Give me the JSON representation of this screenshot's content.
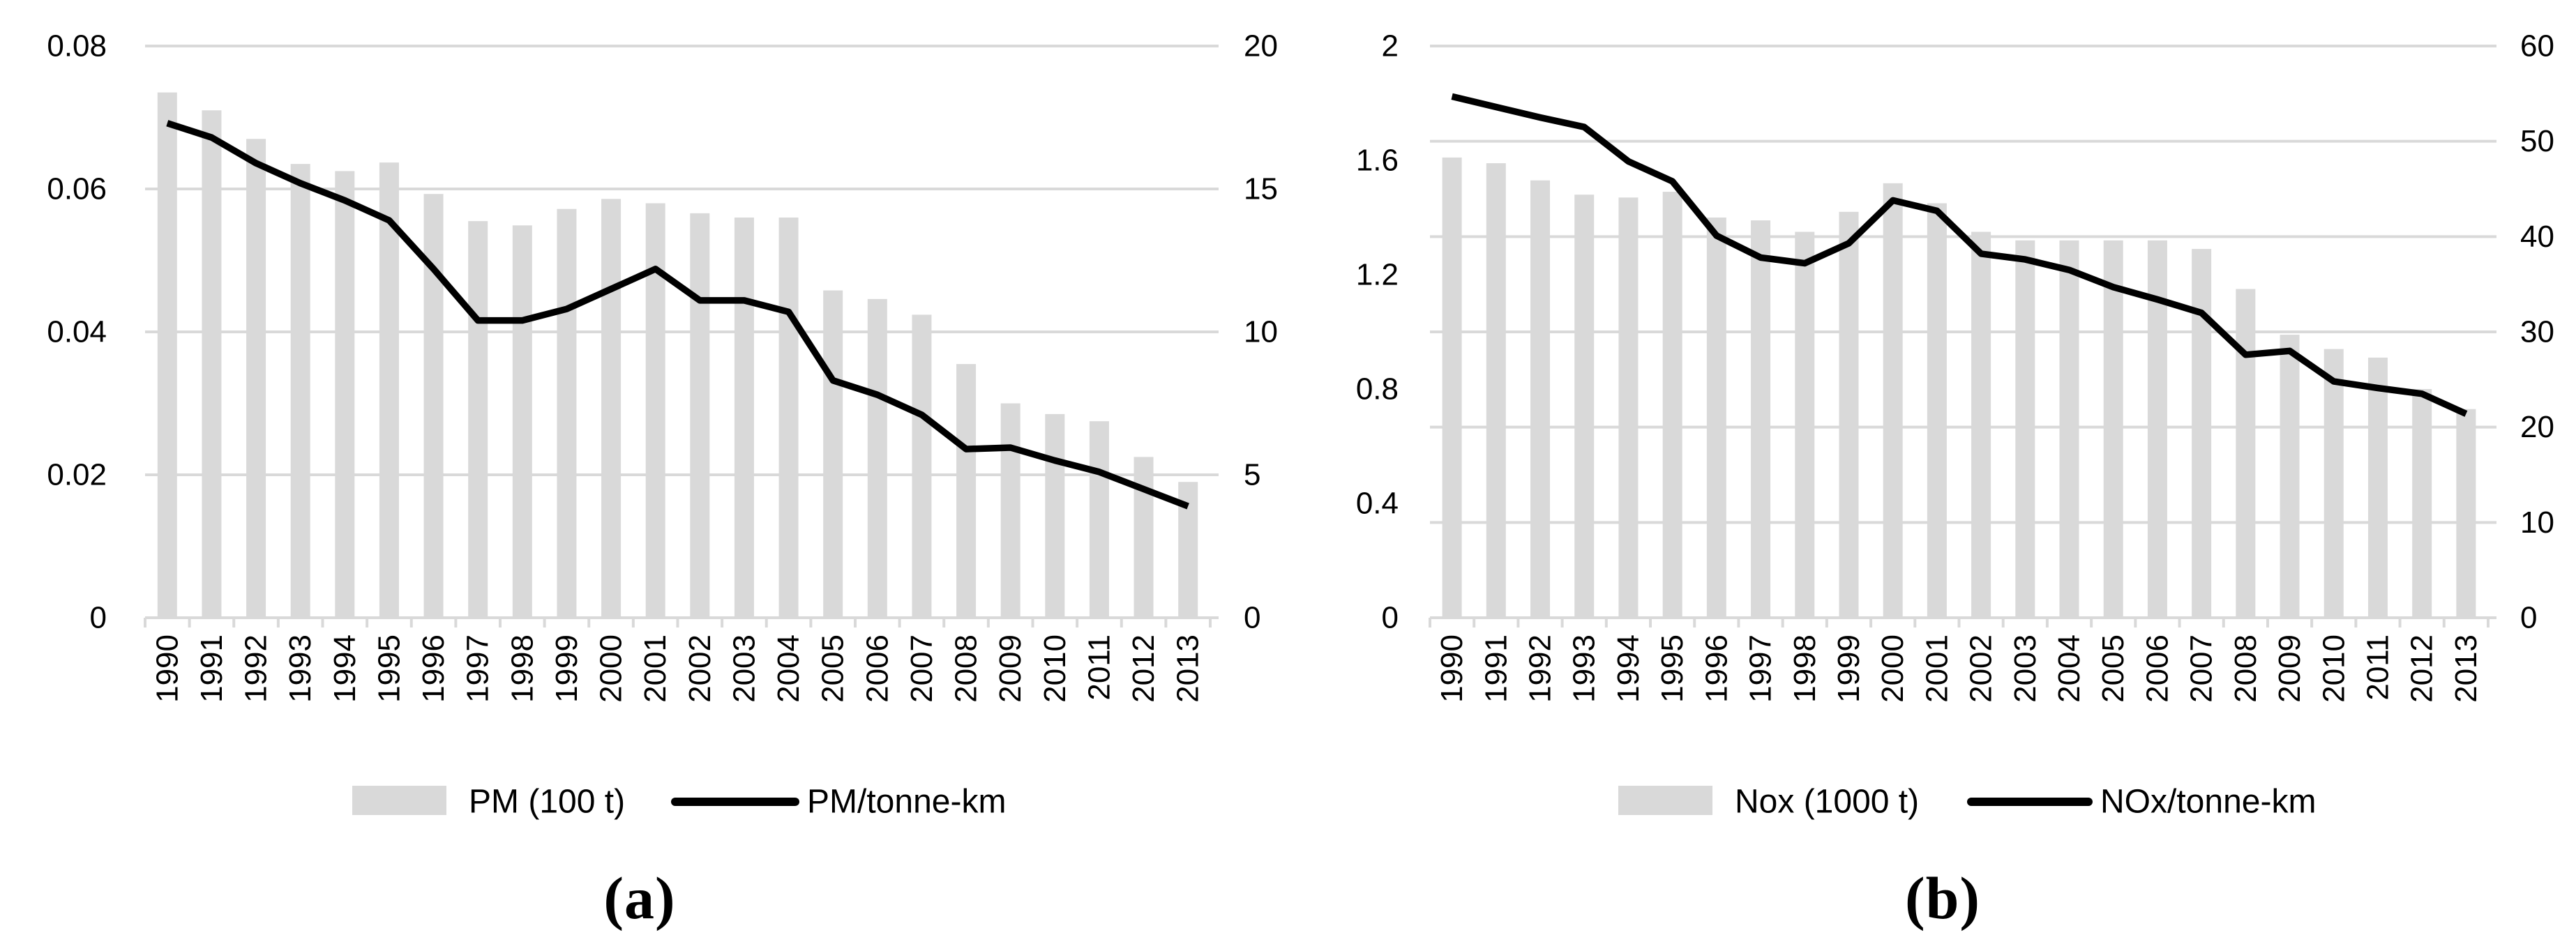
{
  "figure": {
    "background": "#ffffff",
    "captions": {
      "a": "(a)",
      "b": "(b)"
    }
  },
  "colors": {
    "bar_fill": "#d9d9d9",
    "gridline": "#d9d9d9",
    "axis_line": "#d9d9d9",
    "line_stroke": "#000000",
    "tick_text": "#000000",
    "legend_text": "#000000"
  },
  "chart_data": [
    {
      "id": "a",
      "type": "bar+line",
      "caption": "(a)",
      "categories": [
        "1990",
        "1991",
        "1992",
        "1993",
        "1994",
        "1995",
        "1996",
        "1997",
        "1998",
        "1999",
        "2000",
        "2001",
        "2002",
        "2003",
        "2004",
        "2005",
        "2006",
        "2007",
        "2008",
        "2009",
        "2010",
        "2011",
        "2012",
        "2013"
      ],
      "series": [
        {
          "name": "PM (100 t)",
          "type": "bar",
          "axis": "left",
          "values": [
            0.0735,
            0.071,
            0.067,
            0.0635,
            0.0625,
            0.0637,
            0.0593,
            0.0555,
            0.0549,
            0.0572,
            0.0586,
            0.058,
            0.0566,
            0.056,
            0.056,
            0.0458,
            0.0446,
            0.0424,
            0.0355,
            0.03,
            0.0285,
            0.0275,
            0.0225,
            0.019
          ]
        },
        {
          "name": "PM/tonne-km",
          "type": "line",
          "axis": "right",
          "values": [
            17.3,
            16.8,
            15.9,
            15.2,
            14.6,
            13.9,
            12.2,
            10.4,
            10.4,
            10.8,
            11.5,
            12.2,
            11.1,
            11.1,
            10.7,
            8.3,
            7.8,
            7.1,
            5.9,
            5.95,
            5.5,
            5.1,
            4.5,
            3.9
          ]
        }
      ],
      "left_axis": {
        "min": 0,
        "max": 0.08,
        "ticks": [
          "0.08",
          "0.06",
          "0.04",
          "0.02",
          "0"
        ]
      },
      "right_axis": {
        "min": 0,
        "max": 20,
        "ticks": [
          "20",
          "15",
          "10",
          "5",
          "0"
        ]
      },
      "grid": "horizontal",
      "legend_position": "bottom",
      "legend": {
        "bar_label": "PM (100 t)",
        "line_label": "PM/tonne-km"
      }
    },
    {
      "id": "b",
      "type": "bar+line",
      "caption": "(b)",
      "categories": [
        "1990",
        "1991",
        "1992",
        "1993",
        "1994",
        "1995",
        "1996",
        "1997",
        "1998",
        "1999",
        "2000",
        "2001",
        "2002",
        "2003",
        "2004",
        "2005",
        "2006",
        "2007",
        "2008",
        "2009",
        "2010",
        "2011",
        "2012",
        "2013"
      ],
      "series": [
        {
          "name": "Nox (1000 t)",
          "type": "bar",
          "axis": "left",
          "values": [
            1.61,
            1.59,
            1.53,
            1.48,
            1.47,
            1.49,
            1.4,
            1.39,
            1.35,
            1.42,
            1.52,
            1.45,
            1.35,
            1.32,
            1.32,
            1.32,
            1.32,
            1.29,
            1.15,
            0.99,
            0.94,
            0.91,
            0.8,
            0.73
          ]
        },
        {
          "name": "NOx/tonne-km",
          "type": "line",
          "axis": "right",
          "values": [
            54.7,
            53.6,
            52.5,
            51.5,
            47.9,
            45.8,
            40.1,
            37.8,
            37.2,
            39.3,
            43.8,
            42.7,
            38.2,
            37.6,
            36.5,
            34.7,
            33.4,
            32.0,
            27.6,
            28.0,
            24.8,
            24.1,
            23.5,
            21.4
          ]
        }
      ],
      "left_axis": {
        "min": 0,
        "max": 2,
        "ticks": [
          "2",
          "1.6",
          "1.2",
          "0.8",
          "0.4",
          "0"
        ]
      },
      "right_axis": {
        "min": 0,
        "max": 60,
        "ticks": [
          "60",
          "50",
          "40",
          "30",
          "20",
          "10",
          "0"
        ]
      },
      "grid": "horizontal",
      "legend_position": "bottom",
      "legend": {
        "bar_label": "Nox (1000 t)",
        "line_label": "NOx/tonne-km"
      }
    }
  ]
}
